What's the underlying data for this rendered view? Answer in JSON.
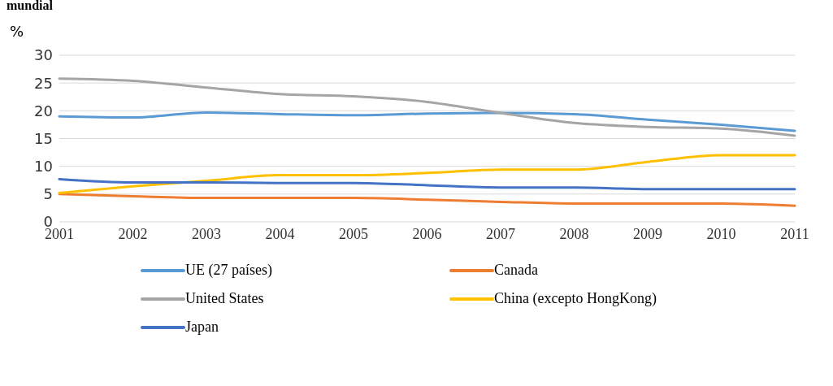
{
  "chart_data": {
    "type": "line",
    "title": "mundial",
    "ylabel": "%",
    "categories": [
      "2001",
      "2002",
      "2003",
      "2004",
      "2005",
      "2006",
      "2007",
      "2008",
      "2009",
      "2010",
      "2011"
    ],
    "series": [
      {
        "name": "UE (27 países)",
        "color": "#5b9bd5",
        "values": [
          19,
          18.8,
          19.7,
          19.4,
          19.2,
          19.5,
          19.6,
          19.4,
          18.4,
          17.5,
          16.4
        ]
      },
      {
        "name": "Canada",
        "color": "#ed7d31",
        "values": [
          5,
          4.6,
          4.3,
          4.3,
          4.3,
          4,
          3.6,
          3.3,
          3.3,
          3.3,
          2.9
        ]
      },
      {
        "name": "United States",
        "color": "#a5a5a5",
        "values": [
          25.8,
          25.4,
          24.2,
          23,
          22.6,
          21.6,
          19.6,
          17.8,
          17.1,
          16.8,
          15.5
        ]
      },
      {
        "name": "China (excepto HongKong)",
        "color": "#ffc000",
        "values": [
          5.2,
          6.4,
          7.4,
          8.4,
          8.4,
          8.8,
          9.4,
          9.4,
          10.8,
          12,
          12
        ]
      },
      {
        "name": "Japan",
        "color": "#4472c4",
        "values": [
          7.7,
          7.1,
          7.1,
          7,
          7,
          6.6,
          6.2,
          6.2,
          5.9,
          5.9,
          5.9
        ]
      }
    ],
    "ylim": [
      0,
      30
    ],
    "yticks": [
      0,
      5,
      10,
      15,
      20,
      25,
      30
    ],
    "grid": "y",
    "legend": "bottom",
    "marker": "none",
    "line_style": "solid"
  }
}
